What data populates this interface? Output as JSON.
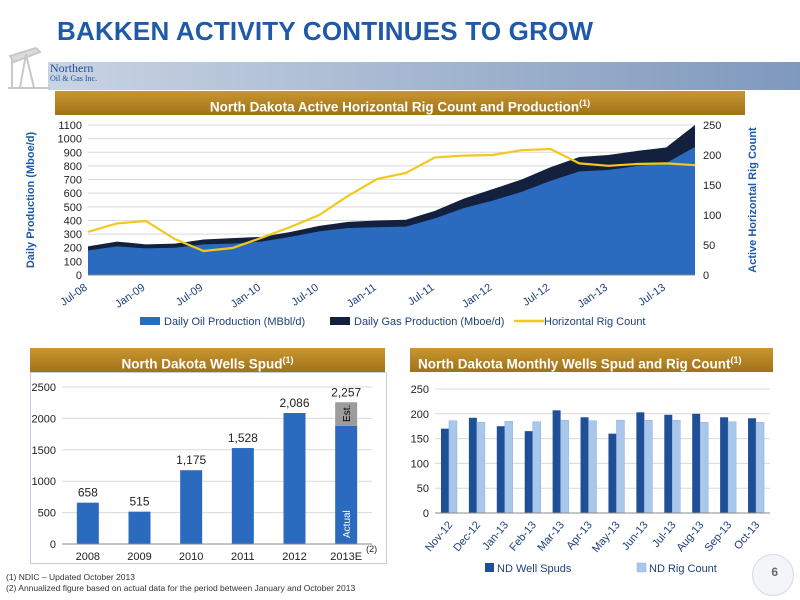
{
  "header": {
    "title": "BAKKEN ACTIVITY CONTINUES TO GROW",
    "logo": {
      "line1": "Northern",
      "line2": "Oil & Gas Inc.",
      "icon": "oil-pump-jack-icon"
    }
  },
  "colors": {
    "title_blue": "#1f5aa8",
    "banner_gold": "#b3841f",
    "oil_blue": "#2a6bbf",
    "gas_navy": "#13213f",
    "rig_yellow": "#f2c81d",
    "wells_dark_blue": "#1f4f96",
    "rig_light_blue": "#a9c7ea",
    "est_gray": "#9c9c9c"
  },
  "panels": {
    "top": {
      "title": "North Dakota Active Horizontal Rig Count and Production",
      "note": "(1)"
    },
    "bottom_left": {
      "title": "North Dakota Wells Spud",
      "note": "(1)"
    },
    "bottom_right": {
      "title": "North Dakota Monthly Wells Spud and Rig Count",
      "note": "(1)"
    }
  },
  "chart_data": [
    {
      "type": "area",
      "title": "North Dakota Active Horizontal Rig Count and Production(1)",
      "ylabel": "Daily Production (Mboe/d)",
      "y2label": "Active Horizontal Rig Count",
      "ylim": [
        0,
        1100
      ],
      "y2lim": [
        0,
        250
      ],
      "yticks": [
        "0",
        "100",
        "200",
        "300",
        "400",
        "500",
        "600",
        "700",
        "800",
        "900",
        "1000",
        "1100"
      ],
      "y2ticks": [
        "0",
        "50",
        "100",
        "150",
        "200",
        "250"
      ],
      "xticks": [
        "Jul-08",
        "Jan-09",
        "Jul-09",
        "Jan-10",
        "Jul-10",
        "Jan-11",
        "Jul-11",
        "Jan-12",
        "Jul-12",
        "Jan-13",
        "Jul-13"
      ],
      "x": [
        "Jul-08",
        "Oct-08",
        "Jan-09",
        "Apr-09",
        "Jul-09",
        "Oct-09",
        "Jan-10",
        "Apr-10",
        "Jul-10",
        "Oct-10",
        "Jan-11",
        "Apr-11",
        "Jul-11",
        "Oct-11",
        "Jan-12",
        "Apr-12",
        "Jul-12",
        "Oct-12",
        "Jan-13",
        "Apr-13",
        "Jul-13",
        "Oct-13"
      ],
      "legend_position": "bottom",
      "grid": true,
      "series": [
        {
          "name": "Daily Oil Production (MBbl/d)",
          "kind": "area",
          "axis": "left",
          "values": [
            180,
            210,
            195,
            200,
            225,
            230,
            245,
            280,
            320,
            345,
            350,
            355,
            415,
            490,
            545,
            610,
            690,
            760,
            770,
            800,
            820,
            940
          ]
        },
        {
          "name": "Daily Gas Production (Mboe/d)",
          "kind": "area-stacked-total",
          "axis": "left",
          "values": [
            210,
            245,
            225,
            230,
            260,
            270,
            280,
            315,
            360,
            390,
            400,
            405,
            470,
            560,
            630,
            700,
            790,
            865,
            880,
            910,
            935,
            1100
          ]
        },
        {
          "name": "Horizontal Rig Count",
          "kind": "line",
          "axis": "right",
          "values": [
            72,
            86,
            90,
            60,
            40,
            45,
            62,
            80,
            100,
            132,
            160,
            170,
            196,
            199,
            200,
            208,
            210,
            186,
            182,
            185,
            186,
            183
          ]
        }
      ]
    },
    {
      "type": "bar",
      "title": "North Dakota Wells Spud(1)",
      "categories": [
        "2008",
        "2009",
        "2010",
        "2011",
        "2012",
        "2013E"
      ],
      "category_superscript": "(2)",
      "values": [
        658,
        515,
        1175,
        1528,
        2086,
        2257
      ],
      "value_labels": [
        "658",
        "515",
        "1,175",
        "1,528",
        "2,086",
        "2,257"
      ],
      "ylim": [
        0,
        2500
      ],
      "yticks": [
        "0",
        "500",
        "1000",
        "1500",
        "2000",
        "2500"
      ],
      "stacked_2013": {
        "actual": 1880,
        "estimated": 377,
        "actual_label": "Actual",
        "est_label": "Est."
      },
      "grid": true
    },
    {
      "type": "bar",
      "title": "North Dakota Monthly Wells Spud and Rig Count(1)",
      "categories": [
        "Nov-12",
        "Dec-12",
        "Jan-13",
        "Feb-13",
        "Mar-13",
        "Apr-13",
        "May-13",
        "Jun-13",
        "Jul-13",
        "Aug-13",
        "Sep-13",
        "Oct-13"
      ],
      "ylim": [
        0,
        250
      ],
      "yticks": [
        "0",
        "50",
        "100",
        "150",
        "200",
        "250"
      ],
      "legend_position": "bottom",
      "grid": true,
      "series": [
        {
          "name": "ND Well Spuds",
          "values": [
            170,
            192,
            175,
            165,
            207,
            193,
            160,
            203,
            198,
            200,
            193,
            191
          ]
        },
        {
          "name": "ND Rig Count",
          "values": [
            186,
            183,
            185,
            184,
            187,
            186,
            187,
            187,
            187,
            183,
            184,
            183
          ]
        }
      ]
    }
  ],
  "footnotes": [
    "(1)   NDIC – Updated October 2013",
    "(2)   Annualized figure based on actual data for the period between January and October 2013"
  ],
  "page_number": "6"
}
